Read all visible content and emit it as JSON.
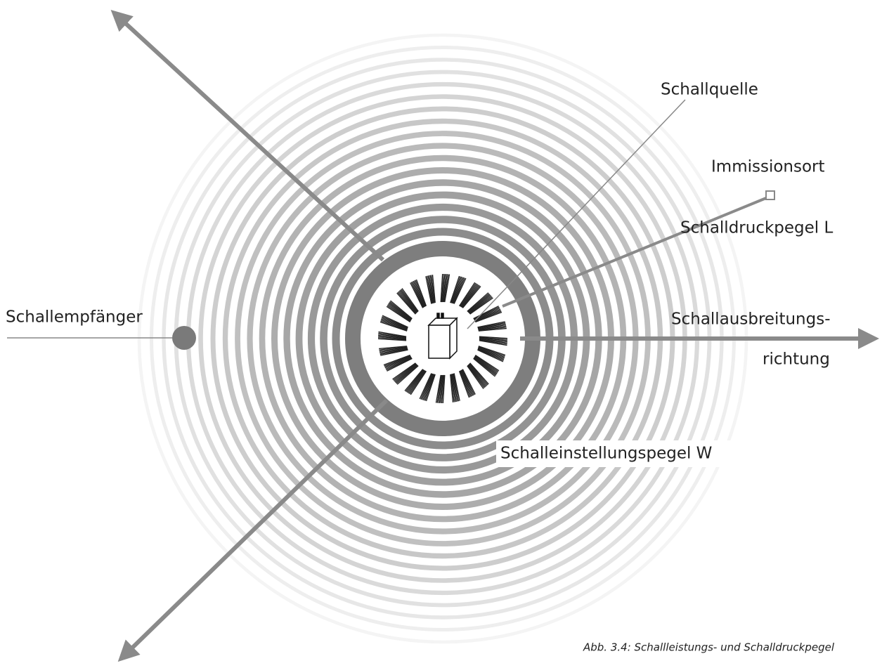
{
  "labels": {
    "source": "Schallquelle",
    "immission": "Immissionsort",
    "pressure": "Schalldruckpegel L",
    "receiver": "Schallempfänger",
    "propagation_1": "Schallausbreitungs-",
    "propagation_2": "richtung",
    "power": "Schalleinstellungspegel W"
  },
  "caption": "Abb. 3.4: Schallleistungs- und Schalldruckpegel"
}
